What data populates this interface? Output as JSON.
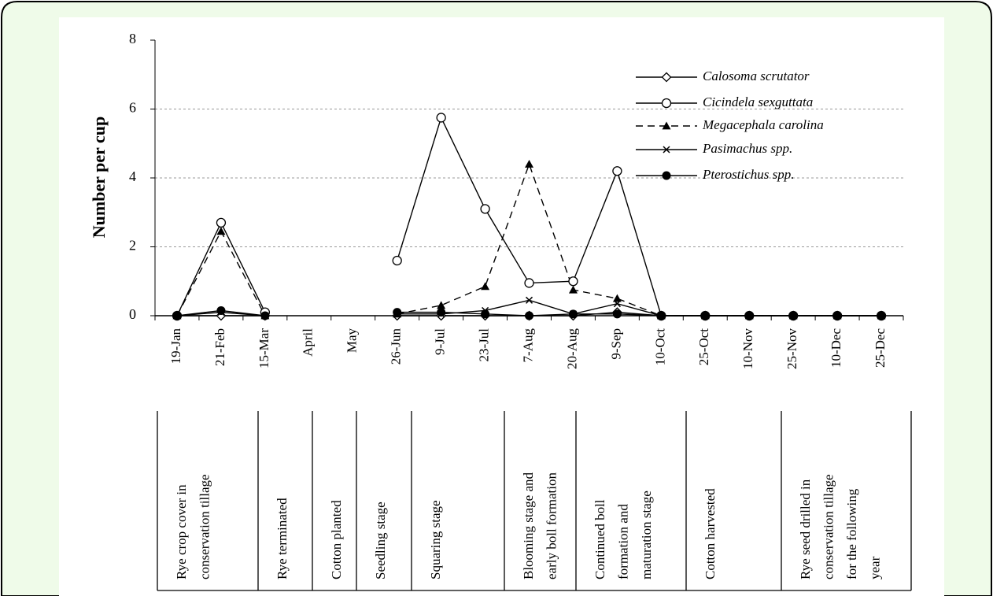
{
  "chart_data": {
    "type": "line",
    "ylabel": "Number per cup",
    "categories": [
      "19-Jan",
      "21-Feb",
      "15-Mar",
      "April",
      "May",
      "26-Jun",
      "9-Jul",
      "23-Jul",
      "7-Aug",
      "20-Aug",
      "9-Sep",
      "10-Oct",
      "25-Oct",
      "10-Nov",
      "25-Nov",
      "10-Dec",
      "25-Dec"
    ],
    "series": [
      {
        "name": "Calosoma scrutator",
        "color": "#000000",
        "marker": "diamond",
        "dash": "solid",
        "values": [
          0,
          0,
          0,
          null,
          null,
          0,
          0,
          0,
          0,
          0,
          0.1,
          0,
          0,
          0,
          0,
          0,
          0
        ]
      },
      {
        "name": "Cicindela sexguttata",
        "color": "#000000",
        "marker": "open-circle",
        "dash": "solid",
        "values": [
          0,
          2.7,
          0.1,
          null,
          null,
          1.6,
          5.75,
          3.1,
          0.95,
          1.0,
          4.2,
          0,
          0,
          0,
          0,
          0,
          0
        ]
      },
      {
        "name": "Megacephala carolina",
        "color": "#000000",
        "marker": "triangle",
        "dash": "dashed",
        "values": [
          0,
          2.45,
          0,
          null,
          null,
          0.05,
          0.3,
          0.85,
          4.4,
          0.75,
          0.5,
          0,
          0,
          0,
          0,
          0,
          0
        ]
      },
      {
        "name": "Pasimachus spp.",
        "color": "#000000",
        "marker": "x",
        "dash": "solid",
        "values": [
          0,
          0.1,
          0,
          null,
          null,
          0.05,
          0.05,
          0.15,
          0.45,
          0.05,
          0.35,
          0,
          0,
          0,
          0,
          0,
          0
        ]
      },
      {
        "name": "Pterostichus spp.",
        "color": "#000000",
        "marker": "filled-circle",
        "dash": "solid",
        "values": [
          0,
          0.15,
          0,
          null,
          null,
          0.1,
          0.1,
          0.05,
          0,
          0.05,
          0.05,
          0,
          0,
          0,
          0,
          0,
          0
        ]
      }
    ],
    "ylim": [
      0,
      8
    ],
    "yticks": [
      0,
      2,
      4,
      6,
      8
    ],
    "grid": true,
    "legend": "upper right",
    "stages": [
      [
        "Rye crop cover in",
        "conservation tillage"
      ],
      [
        "Rye terminated"
      ],
      [
        "Cotton planted"
      ],
      [
        "Seedling stage"
      ],
      [
        "Squaring stage"
      ],
      [
        "Blooming stage and",
        "early boll formation"
      ],
      [
        "Continued boll",
        "formation and",
        "maturation stage"
      ],
      [
        "Cotton harvested"
      ],
      [
        "Rye seed drilled in",
        "conservation tillage",
        "for the following",
        "year"
      ]
    ]
  }
}
